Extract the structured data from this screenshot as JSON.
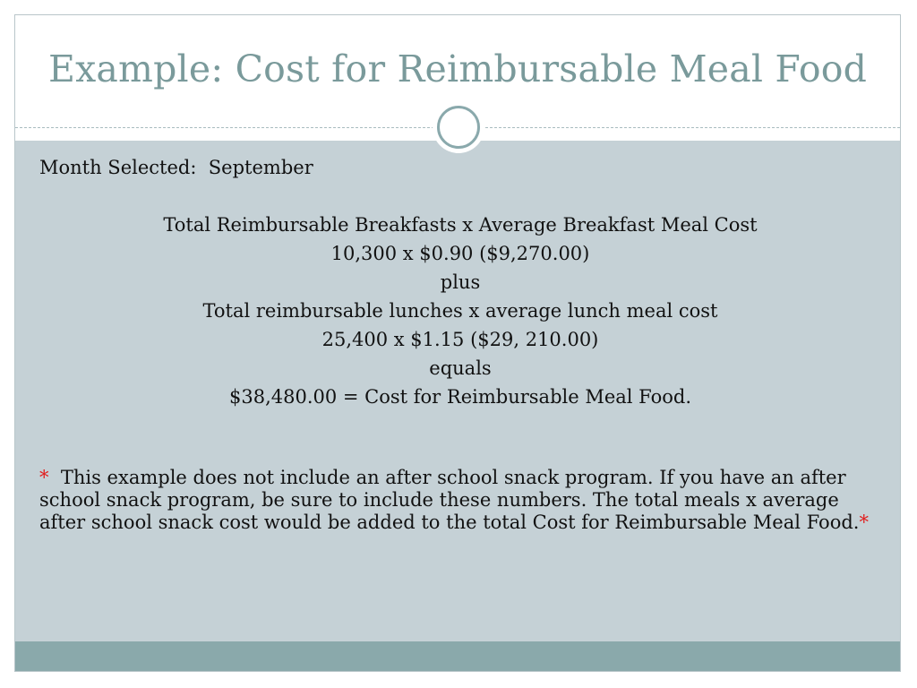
{
  "title": "Example: Cost for Reimbursable Meal Food",
  "month": {
    "label": "Month Selected:",
    "value": "September"
  },
  "calculation": {
    "lines": [
      "Total Reimbursable Breakfasts x Average Breakfast Meal Cost",
      "10,300 x $0.90 ($9,270.00)",
      "plus",
      "Total reimbursable lunches x average lunch meal cost",
      "25,400 x $1.15 ($29, 210.00)",
      "equals",
      "$38,480.00 = Cost for Reimbursable Meal Food."
    ]
  },
  "note": {
    "asterisk": "*",
    "text": "This example does not include an after school snack program.  If you have an after school snack program, be sure to include these numbers.  The total meals x average after school snack cost would be added to the total Cost for Reimbursable Meal Food.",
    "trailing_asterisk": "*"
  },
  "colors": {
    "title": "#7a9a9b",
    "body_background": "#c5d1d6",
    "footer_bar": "#8aa9ab",
    "asterisk": "#e11d1d"
  }
}
